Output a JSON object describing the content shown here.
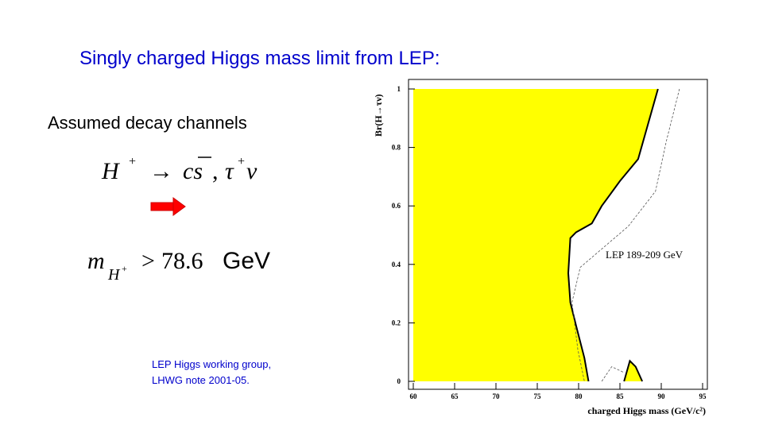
{
  "slide": {
    "title": "Singly charged Higgs mass limit from LEP:",
    "subtitle": "Assumed decay channels",
    "decay": {
      "particle": "H",
      "charge": "+",
      "arrow": "→",
      "quarks": "cs",
      "separator": ",",
      "lepton": "τ",
      "lepton_charge": "+",
      "neutrino": "ν"
    },
    "limit": {
      "symbol": "m",
      "subscript": "H",
      "sub_charge": "+",
      "relation": ">",
      "value": "78.6",
      "unit": "GeV"
    },
    "citation": [
      "LEP Higgs working group,",
      "LHWG note 2001-05."
    ]
  },
  "chart_data": {
    "type": "area",
    "x_label": "charged Higgs mass (GeV/c²)",
    "y_label": "Br(H→τν)",
    "annotation": "LEP 189-209 GeV",
    "xlim": [
      60,
      95
    ],
    "xticks": [
      60,
      65,
      70,
      75,
      80,
      85,
      90,
      95
    ],
    "ylim": [
      0,
      1
    ],
    "yticks": [
      0,
      0.2,
      0.4,
      0.6,
      0.8,
      1
    ],
    "series": [
      {
        "color": "#000000",
        "fill": "#ffff00",
        "dashed": false,
        "x": [
          89.6,
          87.2,
          85.0,
          82.8,
          81.6,
          79.7,
          79.0,
          78.75,
          79.0,
          79.7,
          80.7,
          81.2
        ],
        "values": [
          1,
          0.76,
          0.685,
          0.6,
          0.54,
          0.51,
          0.49,
          0.37,
          0.27,
          0.19,
          0.08,
          0
        ]
      },
      {
        "color": "#000000",
        "fill": "#ffff00",
        "dashed": false,
        "x": [
          85.5,
          86.2,
          86.9,
          87.7
        ],
        "values": [
          0,
          0.07,
          0.05,
          0
        ]
      },
      {
        "color": "#555555",
        "fill": null,
        "dashed": true,
        "x": [
          92.2,
          90.6,
          89.3,
          86.0,
          83.1,
          80.2,
          79.2,
          79.9,
          80.7
        ],
        "values": [
          1,
          0.82,
          0.65,
          0.53,
          0.46,
          0.39,
          0.27,
          0.11,
          0
        ]
      },
      {
        "color": "#555555",
        "fill": null,
        "dashed": true,
        "x": [
          82.8,
          84.0,
          85.5
        ],
        "values": [
          0,
          0.05,
          0.03
        ]
      }
    ]
  }
}
